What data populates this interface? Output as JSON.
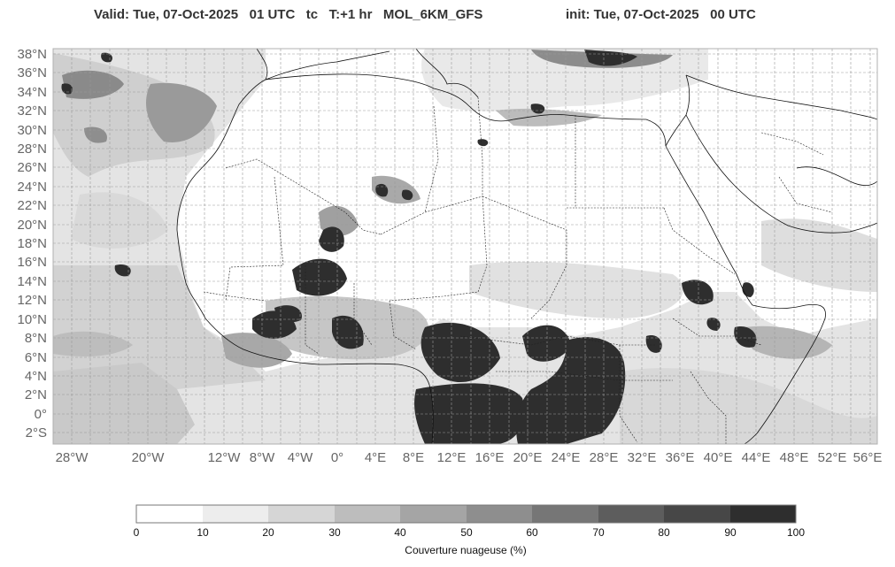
{
  "header": {
    "valid": "Valid: Tue, 07-Oct-2025   01 UTC   tc   T:+1 hr   MOL_6KM_GFS",
    "init": "init: Tue, 07-Oct-2025   00 UTC"
  },
  "map": {
    "lat_labels": [
      "38°N",
      "36°N",
      "34°N",
      "32°N",
      "30°N",
      "28°N",
      "26°N",
      "24°N",
      "22°N",
      "20°N",
      "18°N",
      "16°N",
      "14°N",
      "12°N",
      "10°N",
      "8°N",
      "6°N",
      "4°N",
      "2°N",
      "0°",
      "2°S"
    ],
    "lon_labels": [
      "28°W",
      "20°W",
      "12°W",
      "8°W",
      "4°W",
      "0°",
      "4°E",
      "8°E",
      "12°E",
      "16°E",
      "20°E",
      "24°E",
      "28°E",
      "32°E",
      "36°E",
      "40°E",
      "44°E",
      "48°E",
      "52°E",
      "56°E"
    ]
  },
  "colorbar": {
    "label": "Couverture nuageuse (%)",
    "ticks": [
      "0",
      "10",
      "20",
      "30",
      "40",
      "50",
      "60",
      "70",
      "80",
      "90",
      "100"
    ],
    "colors": [
      "#ffffff",
      "#ededed",
      "#d6d6d6",
      "#bdbdbd",
      "#a5a5a5",
      "#8e8e8e",
      "#767676",
      "#5d5d5d",
      "#474747",
      "#2e2e2e"
    ]
  }
}
